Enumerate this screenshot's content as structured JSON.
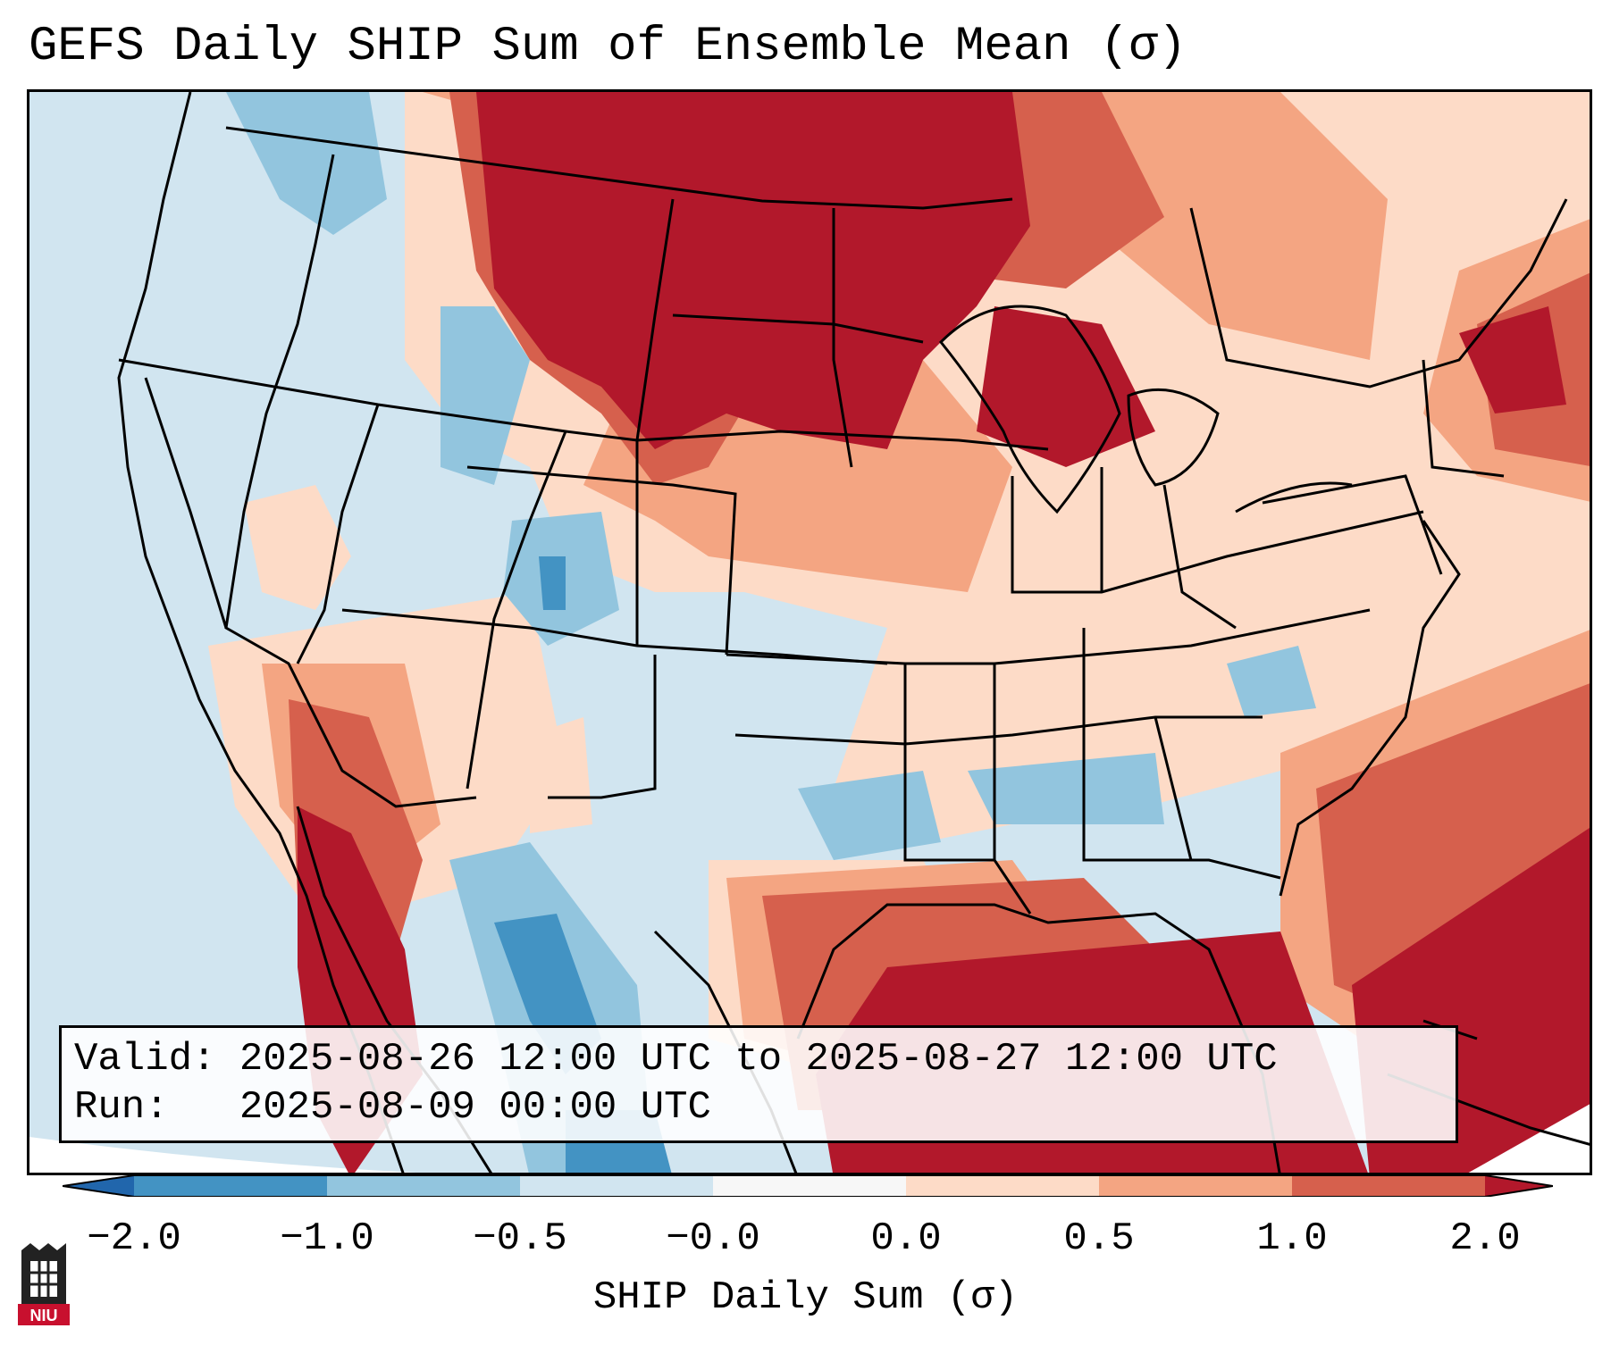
{
  "title": "GEFS Daily SHIP Sum of Ensemble Mean (σ)",
  "info": {
    "valid_label": "Valid:",
    "valid_value": "2025-08-26 12:00 UTC to 2025-08-27 12:00 UTC",
    "run_label": "Run:",
    "run_value": "2025-08-09 00:00 UTC"
  },
  "colorbar": {
    "label": "SHIP Daily Sum (σ)",
    "ticks": [
      "−2.0",
      "−1.0",
      "−0.5",
      "−0.0",
      "0.0",
      "0.5",
      "1.0",
      "2.0"
    ],
    "colors": {
      "below_min": "#2166ac",
      "c1": "#4393c3",
      "c2": "#92c5de",
      "c3": "#d1e5f0",
      "c4": "#f7f7f7",
      "c5": "#fddbc7",
      "c6": "#f4a582",
      "c7": "#d6604d",
      "above_max": "#b2182b"
    }
  },
  "logo": {
    "text": "NIU"
  }
}
